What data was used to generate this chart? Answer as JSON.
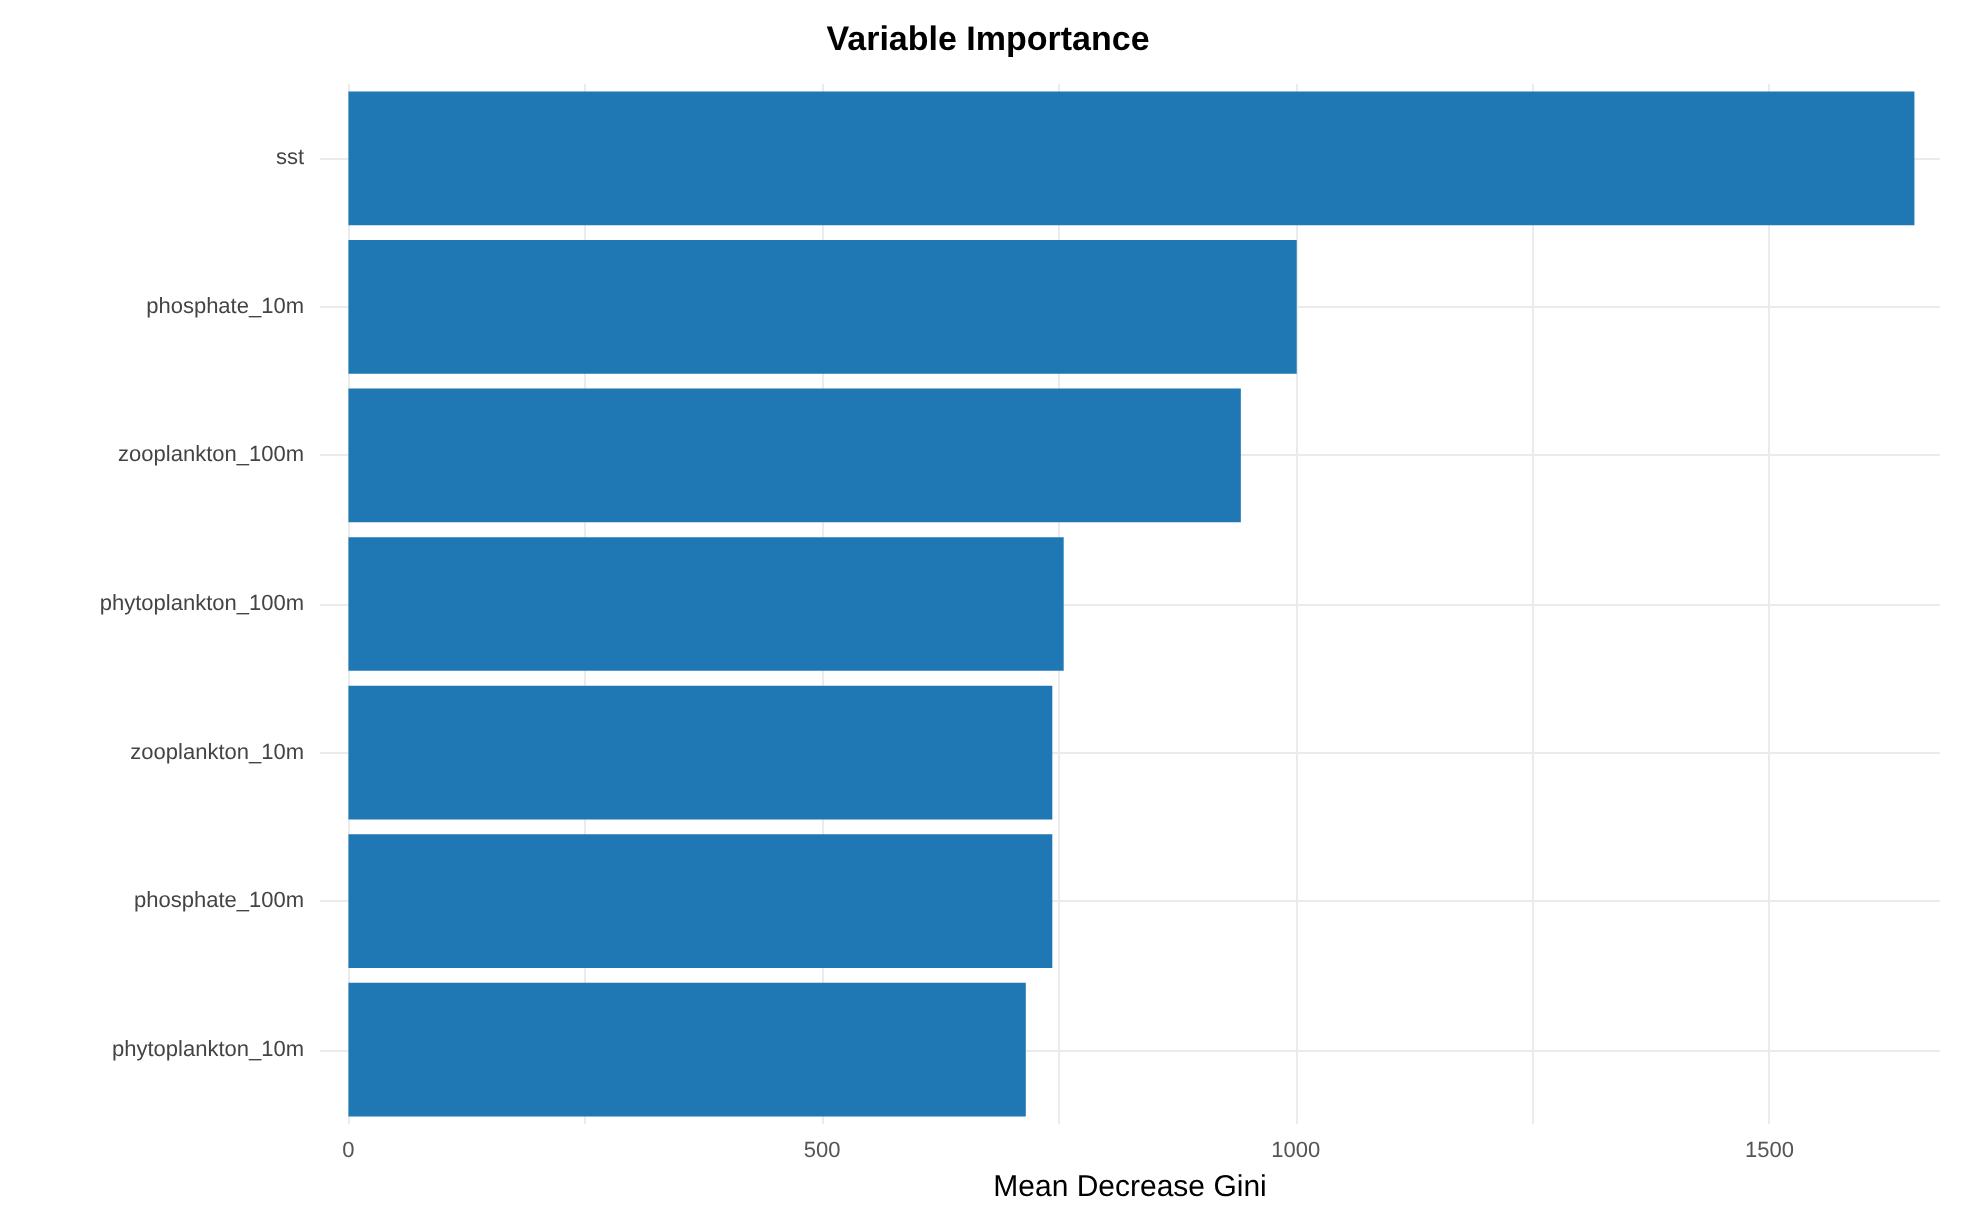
{
  "chart_data": {
    "type": "bar",
    "orientation": "horizontal",
    "title": "Variable Importance",
    "xlabel": "Mean Decrease Gini",
    "categories": [
      "sst",
      "phosphate_10m",
      "zooplankton_100m",
      "phytoplankton_100m",
      "zooplankton_10m",
      "phosphate_100m",
      "phytoplankton_10m"
    ],
    "values": [
      1653,
      1001,
      942,
      755,
      743,
      743,
      715
    ],
    "color": "#1f77b4",
    "xlim": [
      -30,
      1680
    ],
    "xticks": [
      0,
      {
        "value": 250,
        "label": null
      },
      500,
      {
        "value": 750,
        "label": null
      },
      1000,
      {
        "value": 1250,
        "label": null
      },
      1500
    ],
    "grid": true
  }
}
